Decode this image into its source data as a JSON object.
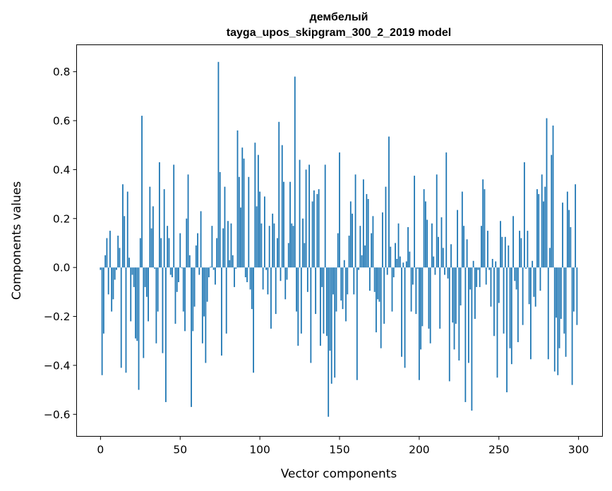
{
  "chart_data": {
    "type": "bar",
    "title": "дембелый",
    "subtitle": "tayga_upos_skipgram_300_2_2019 model",
    "xlabel": "Vector components",
    "ylabel": "Components values",
    "xlim": [
      -15,
      315
    ],
    "ylim": [
      -0.69,
      0.91
    ],
    "grid": false,
    "bar_color": "#1f77b4",
    "x_ticks": [
      0,
      50,
      100,
      150,
      200,
      250,
      300
    ],
    "x_tick_labels": [
      "0",
      "50",
      "100",
      "150",
      "200",
      "250",
      "300"
    ],
    "y_ticks": [
      -0.6,
      -0.4,
      -0.2,
      0.0,
      0.2,
      0.4,
      0.6,
      0.8
    ],
    "y_tick_labels": [
      "−0.6",
      "−0.4",
      "−0.2",
      "0.0",
      "0.2",
      "0.4",
      "0.6",
      "0.8"
    ],
    "values": [
      -0.01,
      -0.44,
      -0.27,
      0.05,
      0.12,
      -0.11,
      0.15,
      -0.18,
      -0.13,
      -0.05,
      -0.01,
      0.13,
      0.08,
      -0.41,
      0.34,
      0.21,
      -0.43,
      0.31,
      0.04,
      -0.22,
      -0.03,
      -0.08,
      -0.29,
      -0.3,
      -0.5,
      0.12,
      0.62,
      -0.37,
      -0.08,
      -0.12,
      -0.22,
      0.33,
      0.16,
      0.25,
      -0.005,
      -0.31,
      -0.18,
      0.43,
      0.12,
      -0.35,
      0.32,
      -0.55,
      0.17,
      0.12,
      -0.03,
      -0.04,
      0.42,
      -0.23,
      -0.1,
      -0.06,
      0.14,
      -0.003,
      -0.18,
      -0.26,
      0.2,
      0.38,
      0.05,
      -0.57,
      -0.26,
      -0.16,
      0.09,
      0.14,
      -0.03,
      0.23,
      -0.31,
      -0.2,
      -0.39,
      -0.14,
      -0.04,
      0.003,
      0.17,
      -0.01,
      -0.07,
      0.12,
      0.84,
      0.39,
      -0.36,
      0.16,
      0.33,
      -0.27,
      0.19,
      0.03,
      0.18,
      0.05,
      -0.08,
      -0.005,
      0.56,
      0.37,
      0.245,
      0.49,
      0.445,
      -0.04,
      -0.06,
      0.37,
      -0.09,
      -0.17,
      -0.43,
      0.51,
      0.25,
      0.46,
      0.31,
      0.18,
      -0.09,
      0.29,
      -0.01,
      -0.11,
      0.17,
      -0.25,
      0.22,
      0.18,
      -0.19,
      0.12,
      0.595,
      -0.055,
      0.5,
      0.35,
      -0.13,
      -0.05,
      0.1,
      0.35,
      0.18,
      0.17,
      0.78,
      -0.18,
      -0.32,
      0.44,
      -0.27,
      0.2,
      0.1,
      0.4,
      -0.1,
      0.42,
      -0.39,
      0.27,
      0.315,
      -0.19,
      0.3,
      0.32,
      -0.32,
      -0.08,
      -0.27,
      0.42,
      -0.28,
      -0.61,
      -0.34,
      -0.475,
      -0.11,
      -0.45,
      -0.18,
      0.14,
      0.47,
      -0.135,
      -0.17,
      0.03,
      -0.22,
      -0.11,
      0.13,
      0.27,
      0.22,
      -0.11,
      0.38,
      -0.46,
      -0.01,
      0.17,
      0.05,
      0.36,
      0.09,
      0.3,
      0.28,
      -0.095,
      0.14,
      0.21,
      -0.1,
      -0.265,
      -0.13,
      -0.14,
      -0.33,
      0.225,
      -0.23,
      0.33,
      -0.03,
      0.535,
      0.085,
      -0.18,
      -0.04,
      0.1,
      0.035,
      0.18,
      0.045,
      -0.365,
      0.02,
      -0.41,
      0.025,
      0.165,
      0.065,
      -0.18,
      -0.07,
      0.375,
      -0.19,
      -0.005,
      -0.46,
      -0.335,
      -0.24,
      0.32,
      0.27,
      0.195,
      -0.25,
      -0.31,
      0.18,
      0.045,
      -0.03,
      0.38,
      0.125,
      -0.25,
      0.205,
      0.08,
      -0.03,
      0.47,
      -0.045,
      -0.465,
      0.095,
      -0.225,
      -0.335,
      -0.23,
      0.235,
      -0.38,
      -0.155,
      0.31,
      0.17,
      -0.55,
      0.115,
      -0.39,
      -0.09,
      -0.585,
      0.027,
      -0.21,
      -0.08,
      -0.01,
      -0.08,
      0.17,
      0.36,
      0.32,
      -0.07,
      0.15,
      -0.01,
      -0.16,
      0.035,
      -0.28,
      0.025,
      -0.45,
      -0.145,
      0.19,
      0.125,
      -0.27,
      0.125,
      -0.51,
      0.09,
      -0.33,
      -0.395,
      0.21,
      -0.055,
      -0.09,
      -0.305,
      0.15,
      0.12,
      -0.235,
      0.43,
      -0.005,
      0.15,
      -0.15,
      -0.375,
      0.027,
      -0.12,
      -0.16,
      0.32,
      0.3,
      -0.095,
      0.38,
      0.27,
      0.33,
      0.61,
      -0.375,
      0.08,
      0.46,
      0.58,
      -0.425,
      -0.205,
      -0.44,
      -0.33,
      -0.21,
      0.265,
      -0.27,
      -0.365,
      0.31,
      0.235,
      0.165,
      -0.48,
      -0.18,
      0.34,
      -0.235
    ]
  }
}
